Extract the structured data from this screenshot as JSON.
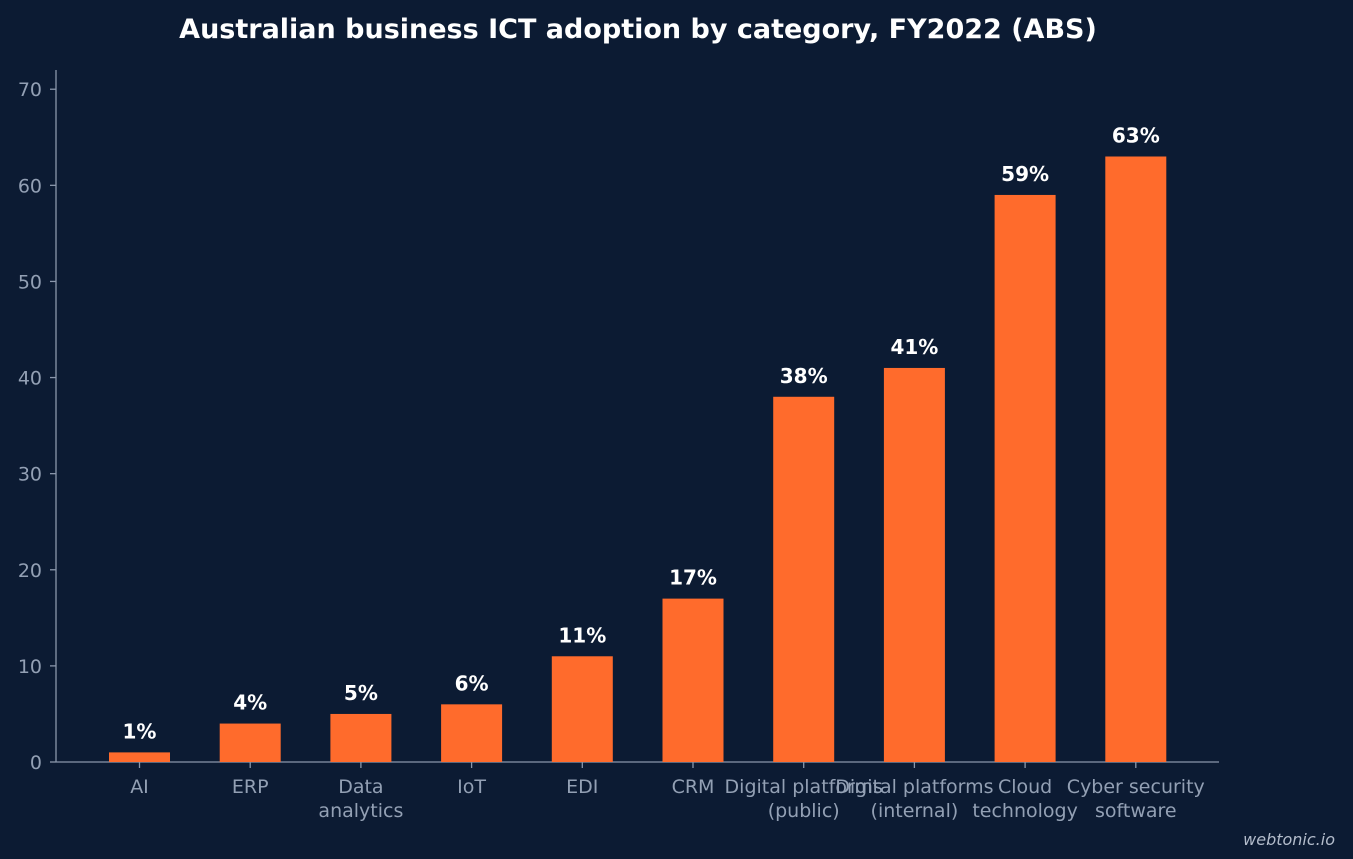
{
  "watermark": "webtonic.io",
  "chart_data": {
    "type": "bar",
    "title": "Australian business ICT adoption by category, FY2022 (ABS)",
    "xlabel": "",
    "ylabel": "",
    "categories": [
      "AI",
      "ERP",
      "Data analytics",
      "IoT",
      "EDI",
      "CRM",
      "Digital platforms (public)",
      "Digital platforms (internal)",
      "Cloud technology",
      "Cyber security software"
    ],
    "category_lines": [
      [
        "AI"
      ],
      [
        "ERP"
      ],
      [
        "Data",
        "analytics"
      ],
      [
        "IoT"
      ],
      [
        "EDI"
      ],
      [
        "CRM"
      ],
      [
        "Digital platforms",
        "(public)"
      ],
      [
        "Digital platforms",
        "(internal)"
      ],
      [
        "Cloud",
        "technology"
      ],
      [
        "Cyber security",
        "software"
      ]
    ],
    "values": [
      1,
      4,
      5,
      6,
      11,
      17,
      38,
      41,
      59,
      63
    ],
    "value_labels": [
      "1%",
      "4%",
      "5%",
      "6%",
      "11%",
      "17%",
      "38%",
      "41%",
      "59%",
      "63%"
    ],
    "ylim": [
      0,
      72
    ],
    "yticks": [
      0,
      10,
      20,
      30,
      40,
      50,
      60,
      70
    ],
    "ytick_labels": [
      "0",
      "10",
      "20",
      "30",
      "40",
      "50",
      "60",
      "70"
    ],
    "grid": false,
    "legend": "none",
    "bar_color": "#ff6b2c",
    "background_color": "#0c1b33",
    "text_color": "#ffffff",
    "tick_color": "#93a0b4"
  }
}
